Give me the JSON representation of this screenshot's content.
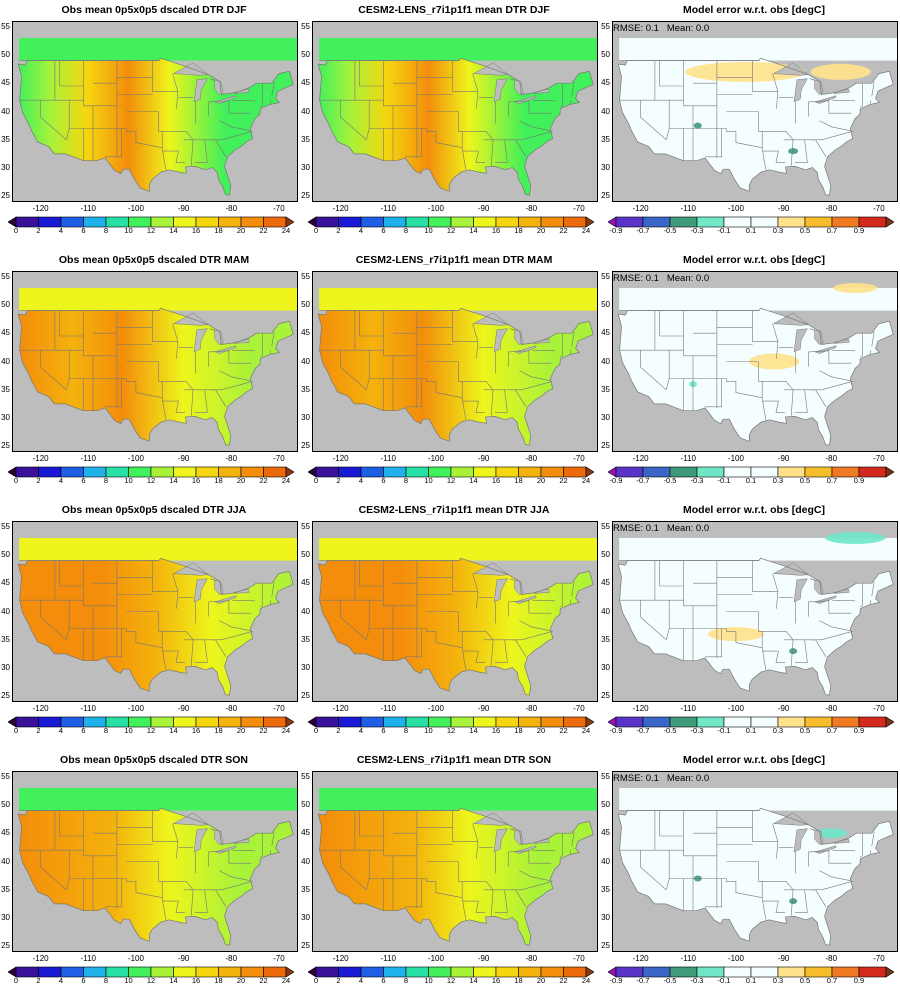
{
  "colorbars": {
    "dtr": {
      "colors": [
        "#2a003d",
        "#3a1299",
        "#1a1ad4",
        "#1e5fe6",
        "#1fb2ea",
        "#27e0a6",
        "#41f05a",
        "#a8f23a",
        "#eef51c",
        "#f5d60f",
        "#f4b20c",
        "#f38d0b",
        "#ec6a0a",
        "#8a3a10"
      ],
      "labels": [
        "0",
        "2",
        "4",
        "6",
        "8",
        "10",
        "12",
        "14",
        "16",
        "18",
        "20",
        "22",
        "24"
      ]
    },
    "err": {
      "colors": [
        "#9a12b8",
        "#5a34c8",
        "#3a66c8",
        "#3f9a7a",
        "#6fe7c6",
        "#f4fefe",
        "#f4fefe",
        "#ffe28a",
        "#f7bc2a",
        "#ef7a22",
        "#d42a1e",
        "#7a3616"
      ],
      "labels": [
        "-0.9",
        "-0.7",
        "-0.5",
        "-0.3",
        "-0.1",
        "0.1",
        "0.3",
        "0.5",
        "0.7",
        "0.9"
      ]
    }
  },
  "lat_ticks": [
    "25",
    "30",
    "35",
    "40",
    "45",
    "50",
    "55"
  ],
  "lon_ticks": [
    "-120",
    "-110",
    "-100",
    "-90",
    "-80",
    "-70"
  ],
  "rows": [
    {
      "season": "DJF",
      "obs_title": "Obs mean 0p5x0p5 dscaled DTR DJF",
      "model_title": "CESM2-LENS_r7i1p1f1 mean DTR DJF",
      "err_title": "Model error w.r.t. obs [degC]",
      "stats": "RMSE: 0.1   Mean: 0.0"
    },
    {
      "season": "MAM",
      "obs_title": "Obs mean 0p5x0p5 dscaled DTR MAM",
      "model_title": "CESM2-LENS_r7i1p1f1 mean DTR MAM",
      "err_title": "Model error w.r.t. obs [degC]",
      "stats": "RMSE: 0.1   Mean: 0.0"
    },
    {
      "season": "JJA",
      "obs_title": "Obs mean 0p5x0p5 dscaled DTR JJA",
      "model_title": "CESM2-LENS_r7i1p1f1 mean DTR JJA",
      "err_title": "Model error w.r.t. obs [degC]",
      "stats": "RMSE: 0.1   Mean: 0.0"
    },
    {
      "season": "SON",
      "obs_title": "Obs mean 0p5x0p5 dscaled DTR SON",
      "model_title": "CESM2-LENS_r7i1p1f1 mean DTR SON",
      "err_title": "Model error w.r.t. obs [degC]",
      "stats": "RMSE: 0.1   Mean: 0.0"
    }
  ]
}
